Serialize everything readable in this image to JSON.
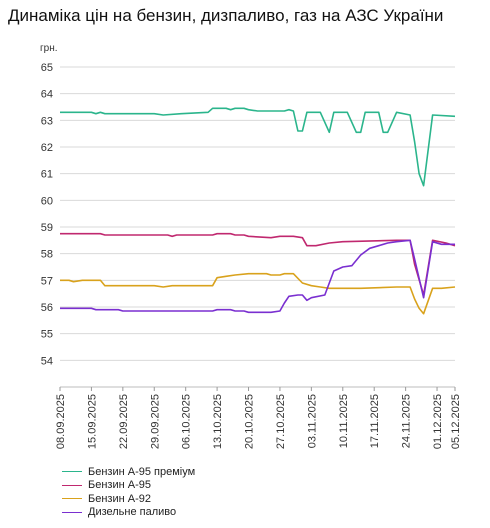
{
  "chart_data": {
    "type": "line",
    "title": "Динаміка цін на бензин, дизпаливо, газ на АЗС України",
    "ylabel": "грн.",
    "xlabel": "",
    "ylim": [
      53,
      65
    ],
    "yticks": [
      54,
      55,
      56,
      57,
      58,
      59,
      60,
      61,
      62,
      63,
      64,
      65
    ],
    "grid": "horizontal",
    "legend_position": "bottom-left",
    "x_start": "2025-09-08",
    "x_end": "2025-12-05",
    "xtick_labels": [
      "08.09.2025",
      "15.09.2025",
      "22.09.2025",
      "29.09.2025",
      "06.10.2025",
      "13.10.2025",
      "20.10.2025",
      "27.10.2025",
      "03.11.2025",
      "10.11.2025",
      "17.11.2025",
      "24.11.2025",
      "01.12.2025",
      "05.12.2025"
    ],
    "xtick_dates": [
      "2025-09-08",
      "2025-09-15",
      "2025-09-22",
      "2025-09-29",
      "2025-10-06",
      "2025-10-13",
      "2025-10-20",
      "2025-10-27",
      "2025-11-03",
      "2025-11-10",
      "2025-11-17",
      "2025-11-24",
      "2025-12-01",
      "2025-12-05"
    ],
    "series": [
      {
        "name": "Бензин А-95 преміум",
        "color": "#2bb58c",
        "points": [
          [
            "2025-09-08",
            63.3
          ],
          [
            "2025-09-15",
            63.3
          ],
          [
            "2025-09-16",
            63.25
          ],
          [
            "2025-09-17",
            63.3
          ],
          [
            "2025-09-18",
            63.25
          ],
          [
            "2025-09-29",
            63.25
          ],
          [
            "2025-10-01",
            63.2
          ],
          [
            "2025-10-05",
            63.25
          ],
          [
            "2025-10-11",
            63.3
          ],
          [
            "2025-10-12",
            63.45
          ],
          [
            "2025-10-15",
            63.45
          ],
          [
            "2025-10-16",
            63.4
          ],
          [
            "2025-10-17",
            63.45
          ],
          [
            "2025-10-19",
            63.45
          ],
          [
            "2025-10-20",
            63.4
          ],
          [
            "2025-10-22",
            63.35
          ],
          [
            "2025-10-28",
            63.35
          ],
          [
            "2025-10-29",
            63.4
          ],
          [
            "2025-10-30",
            63.35
          ],
          [
            "2025-10-31",
            62.6
          ],
          [
            "2025-11-01",
            62.6
          ],
          [
            "2025-11-02",
            63.3
          ],
          [
            "2025-11-05",
            63.3
          ],
          [
            "2025-11-07",
            62.55
          ],
          [
            "2025-11-08",
            63.3
          ],
          [
            "2025-11-11",
            63.3
          ],
          [
            "2025-11-13",
            62.55
          ],
          [
            "2025-11-14",
            62.55
          ],
          [
            "2025-11-15",
            63.3
          ],
          [
            "2025-11-18",
            63.3
          ],
          [
            "2025-11-19",
            62.55
          ],
          [
            "2025-11-20",
            62.55
          ],
          [
            "2025-11-22",
            63.3
          ],
          [
            "2025-11-25",
            63.2
          ],
          [
            "2025-11-26",
            62.2
          ],
          [
            "2025-11-27",
            61.0
          ],
          [
            "2025-11-28",
            60.55
          ],
          [
            "2025-11-30",
            63.2
          ],
          [
            "2025-12-05",
            63.15
          ]
        ]
      },
      {
        "name": "Бензин А-95",
        "color": "#c0286f",
        "points": [
          [
            "2025-09-08",
            58.75
          ],
          [
            "2025-09-17",
            58.75
          ],
          [
            "2025-09-18",
            58.7
          ],
          [
            "2025-10-02",
            58.7
          ],
          [
            "2025-10-03",
            58.65
          ],
          [
            "2025-10-04",
            58.7
          ],
          [
            "2025-10-12",
            58.7
          ],
          [
            "2025-10-13",
            58.75
          ],
          [
            "2025-10-16",
            58.75
          ],
          [
            "2025-10-17",
            58.7
          ],
          [
            "2025-10-19",
            58.7
          ],
          [
            "2025-10-20",
            58.65
          ],
          [
            "2025-10-25",
            58.6
          ],
          [
            "2025-10-27",
            58.65
          ],
          [
            "2025-10-30",
            58.65
          ],
          [
            "2025-11-01",
            58.6
          ],
          [
            "2025-11-02",
            58.3
          ],
          [
            "2025-11-04",
            58.3
          ],
          [
            "2025-11-07",
            58.4
          ],
          [
            "2025-11-10",
            58.45
          ],
          [
            "2025-11-22",
            58.5
          ],
          [
            "2025-11-25",
            58.5
          ],
          [
            "2025-11-26",
            57.6
          ],
          [
            "2025-11-28",
            56.45
          ],
          [
            "2025-11-30",
            58.5
          ],
          [
            "2025-12-03",
            58.4
          ],
          [
            "2025-12-05",
            58.3
          ]
        ]
      },
      {
        "name": "Бензин А-92",
        "color": "#d9a21c",
        "points": [
          [
            "2025-09-08",
            57.0
          ],
          [
            "2025-09-10",
            57.0
          ],
          [
            "2025-09-11",
            56.95
          ],
          [
            "2025-09-13",
            57.0
          ],
          [
            "2025-09-17",
            57.0
          ],
          [
            "2025-09-18",
            56.8
          ],
          [
            "2025-09-21",
            56.8
          ],
          [
            "2025-09-22",
            56.8
          ],
          [
            "2025-09-29",
            56.8
          ],
          [
            "2025-10-01",
            56.75
          ],
          [
            "2025-10-03",
            56.8
          ],
          [
            "2025-10-12",
            56.8
          ],
          [
            "2025-10-13",
            57.1
          ],
          [
            "2025-10-15",
            57.15
          ],
          [
            "2025-10-17",
            57.2
          ],
          [
            "2025-10-20",
            57.25
          ],
          [
            "2025-10-24",
            57.25
          ],
          [
            "2025-10-25",
            57.2
          ],
          [
            "2025-10-27",
            57.2
          ],
          [
            "2025-10-28",
            57.25
          ],
          [
            "2025-10-30",
            57.25
          ],
          [
            "2025-11-01",
            56.9
          ],
          [
            "2025-11-03",
            56.8
          ],
          [
            "2025-11-05",
            56.75
          ],
          [
            "2025-11-07",
            56.7
          ],
          [
            "2025-11-14",
            56.7
          ],
          [
            "2025-11-22",
            56.75
          ],
          [
            "2025-11-25",
            56.75
          ],
          [
            "2025-11-26",
            56.3
          ],
          [
            "2025-11-27",
            55.95
          ],
          [
            "2025-11-28",
            55.75
          ],
          [
            "2025-11-30",
            56.7
          ],
          [
            "2025-12-02",
            56.7
          ],
          [
            "2025-12-05",
            56.75
          ]
        ]
      },
      {
        "name": "Дизельне паливо",
        "color": "#7a2fd0",
        "points": [
          [
            "2025-09-08",
            55.95
          ],
          [
            "2025-09-15",
            55.95
          ],
          [
            "2025-09-16",
            55.9
          ],
          [
            "2025-09-21",
            55.9
          ],
          [
            "2025-09-22",
            55.85
          ],
          [
            "2025-10-12",
            55.85
          ],
          [
            "2025-10-13",
            55.9
          ],
          [
            "2025-10-16",
            55.9
          ],
          [
            "2025-10-17",
            55.85
          ],
          [
            "2025-10-19",
            55.85
          ],
          [
            "2025-10-20",
            55.8
          ],
          [
            "2025-10-24",
            55.8
          ],
          [
            "2025-10-25",
            55.8
          ],
          [
            "2025-10-27",
            55.85
          ],
          [
            "2025-10-28",
            56.15
          ],
          [
            "2025-10-29",
            56.4
          ],
          [
            "2025-10-31",
            56.45
          ],
          [
            "2025-11-01",
            56.45
          ],
          [
            "2025-11-02",
            56.25
          ],
          [
            "2025-11-03",
            56.35
          ],
          [
            "2025-11-06",
            56.45
          ],
          [
            "2025-11-08",
            57.35
          ],
          [
            "2025-11-10",
            57.5
          ],
          [
            "2025-11-12",
            57.55
          ],
          [
            "2025-11-14",
            57.95
          ],
          [
            "2025-11-16",
            58.2
          ],
          [
            "2025-11-18",
            58.3
          ],
          [
            "2025-11-20",
            58.4
          ],
          [
            "2025-11-22",
            58.45
          ],
          [
            "2025-11-25",
            58.5
          ],
          [
            "2025-11-26",
            57.8
          ],
          [
            "2025-11-28",
            56.35
          ],
          [
            "2025-11-30",
            58.45
          ],
          [
            "2025-12-02",
            58.35
          ],
          [
            "2025-12-05",
            58.35
          ]
        ]
      }
    ]
  }
}
